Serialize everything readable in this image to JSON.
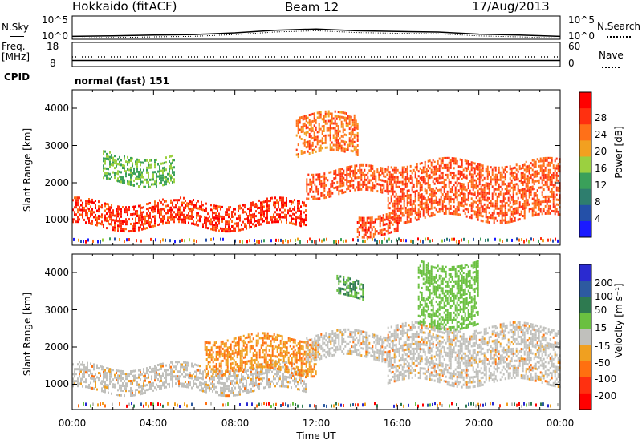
{
  "header": {
    "site": "Hokkaido (fitACF)",
    "beam": "Beam 12",
    "date": "17/Aug/2013"
  },
  "noise_panel": {
    "left_label": "N.Sky",
    "right_label": "N.Search",
    "left_ticks": [
      "10^5",
      "10^0"
    ],
    "right_ticks": [
      "10^5",
      "10^0"
    ]
  },
  "freq_panel": {
    "left_label_1": "Freq.",
    "left_label_2": "[MHz]",
    "left_ticks": [
      "18",
      "8"
    ],
    "right_ticks": [
      "60",
      "0"
    ],
    "right_label": "Nave"
  },
  "cpid": {
    "label": "CPID",
    "value": "normal (fast) 151"
  },
  "x_axis": {
    "ticks": [
      "00:00",
      "04:00",
      "08:00",
      "12:00",
      "16:00",
      "20:00",
      "00:00"
    ],
    "label": "Time UT"
  },
  "power_panel": {
    "ylabel": "Slant Range [km]",
    "yticks": [
      "4000",
      "3000",
      "2000",
      "1000"
    ],
    "colorbar_label": "Power [dB]",
    "colorbar_ticks": [
      "28",
      "24",
      "20",
      "16",
      "12",
      "8",
      "4"
    ]
  },
  "velocity_panel": {
    "ylabel": "Slant Range [km]",
    "yticks": [
      "4000",
      "3000",
      "2000",
      "1000"
    ],
    "colorbar_label": "Velocity [m s⁻¹]",
    "colorbar_ticks": [
      "200",
      "100",
      "50",
      "15",
      "-15",
      "-50",
      "-100",
      "-200"
    ]
  },
  "colors": {
    "power_scale": [
      "#1a1aff",
      "#2450a8",
      "#2e7e6e",
      "#3aa05a",
      "#9bd040",
      "#f2a020",
      "#ff7018",
      "#ff3010",
      "#ff0000"
    ],
    "velocity_scale": [
      "#2a2ad0",
      "#2d5aa0",
      "#2e7a50",
      "#6ac040",
      "#c0c0bc",
      "#f0a020",
      "#ff7010",
      "#ff3010",
      "#ff0000"
    ]
  },
  "chart_data": [
    {
      "type": "heatmap",
      "title": "Beam 12",
      "xlabel": "Time UT",
      "ylabel": "Slant Range [km]",
      "x_range_hours": [
        0,
        24
      ],
      "ylim": [
        180,
        4500
      ],
      "colorbar": "Power [dB]",
      "clim": [
        0,
        32
      ],
      "grid": false,
      "features": [
        {
          "start_h": 0,
          "end_h": 11.5,
          "range_km": [
            700,
            1400
          ],
          "value": 28
        },
        {
          "start_h": 11.5,
          "end_h": 15.5,
          "range_km": [
            1600,
            2300
          ],
          "value": 26
        },
        {
          "start_h": 15.5,
          "end_h": 24,
          "range_km": [
            900,
            2500
          ],
          "value": 26
        },
        {
          "start_h": 11,
          "end_h": 14,
          "range_km": [
            2700,
            3800
          ],
          "value": 24
        },
        {
          "start_h": 14,
          "end_h": 16,
          "range_km": [
            500,
            1100
          ],
          "value": 27
        },
        {
          "start_h": 1.5,
          "end_h": 5,
          "range_km": [
            1900,
            2700
          ],
          "value": 14
        }
      ]
    },
    {
      "type": "heatmap",
      "title": "Beam 12",
      "xlabel": "Time UT",
      "ylabel": "Slant Range [km]",
      "x_range_hours": [
        0,
        24
      ],
      "ylim": [
        180,
        4500
      ],
      "colorbar": "Velocity [m s⁻¹]",
      "clim": [
        -250,
        250
      ],
      "grid": false,
      "features": [
        {
          "start_h": 0,
          "end_h": 11.5,
          "range_km": [
            700,
            1400
          ],
          "value": 0
        },
        {
          "start_h": 6.5,
          "end_h": 12,
          "range_km": [
            1200,
            2200
          ],
          "value": -40
        },
        {
          "start_h": 11.5,
          "end_h": 15.5,
          "range_km": [
            1600,
            2300
          ],
          "value": 0
        },
        {
          "start_h": 13,
          "end_h": 14.3,
          "range_km": [
            3300,
            3800
          ],
          "value": 80
        },
        {
          "start_h": 15.5,
          "end_h": 24,
          "range_km": [
            900,
            2500
          ],
          "value": 0
        },
        {
          "start_h": 17,
          "end_h": 20,
          "range_km": [
            2500,
            4300
          ],
          "value": 40
        }
      ]
    },
    {
      "type": "line",
      "title": "N.Sky / N.Search",
      "x_range_hours": [
        0,
        24
      ],
      "ylim": [
        1,
        100000
      ],
      "series": [
        {
          "x": [
            0,
            2,
            4,
            6,
            8,
            10,
            12,
            14,
            16,
            18,
            20,
            22,
            24
          ],
          "values": [
            3,
            4,
            6,
            8,
            20,
            80,
            150,
            60,
            40,
            30,
            10,
            6,
            3
          ]
        }
      ]
    },
    {
      "type": "line",
      "title": "Freq. / Nave",
      "x_range_hours": [
        0,
        24
      ],
      "ylim": [
        8,
        18
      ],
      "series": [
        {
          "x": [
            0,
            24
          ],
          "values": [
            10.5,
            10.5
          ]
        },
        {
          "x": [
            0,
            24
          ],
          "values": [
            12,
            12
          ]
        }
      ]
    }
  ]
}
